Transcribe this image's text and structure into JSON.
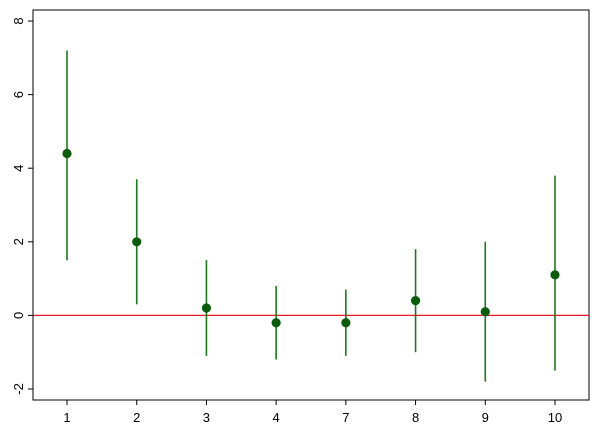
{
  "chart_data": {
    "type": "scatter",
    "title": "",
    "xlabel": "",
    "ylabel": "",
    "categories": [
      "1",
      "2",
      "3",
      "4",
      "7",
      "8",
      "9",
      "10"
    ],
    "series": [
      {
        "values": [
          4.4,
          2.0,
          0.2,
          -0.2,
          -0.2,
          0.4,
          0.1,
          1.1
        ],
        "ci_low": [
          1.5,
          0.3,
          -1.1,
          -1.2,
          -1.1,
          -1.0,
          -1.8,
          -1.5
        ],
        "ci_high": [
          7.2,
          3.7,
          1.5,
          0.8,
          0.7,
          1.8,
          2.0,
          3.8
        ]
      }
    ],
    "ylim": [
      -2.3,
      8.3
    ],
    "yticks": [
      -2,
      0,
      2,
      4,
      6,
      8
    ],
    "reference_line": {
      "y": 0,
      "color": "#e8192c"
    },
    "grid": false,
    "colors": {
      "marker": "#0a5c0a",
      "whisker": "#1a7a1a",
      "axis": "#000000"
    }
  }
}
